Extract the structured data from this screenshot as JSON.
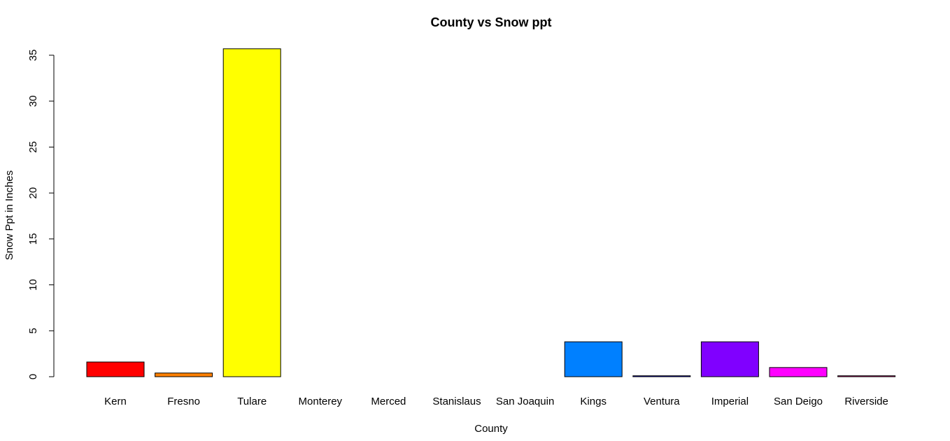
{
  "chart_data": {
    "type": "bar",
    "title": "County vs Snow ppt",
    "xlabel": "County",
    "ylabel": "Snow Ppt in Inches",
    "ylim": [
      0,
      35
    ],
    "yticks": [
      0,
      5,
      10,
      15,
      20,
      25,
      30,
      35
    ],
    "grid": false,
    "categories": [
      "Kern",
      "Fresno",
      "Tulare",
      "Monterey",
      "Merced",
      "Stanislaus",
      "San Joaquin",
      "Kings",
      "Ventura",
      "Imperial",
      "San Deigo",
      "Riverside"
    ],
    "values": [
      1.6,
      0.4,
      35.7,
      0.0,
      0.0,
      0.0,
      0.0,
      3.8,
      0.1,
      3.8,
      1.0,
      0.1
    ],
    "colors": [
      "#FF0000",
      "#FF8000",
      "#FFFF00",
      "#80FF00",
      "#00FF00",
      "#00FF80",
      "#00FFFF",
      "#0080FF",
      "#0000FF",
      "#8000FF",
      "#FF00FF",
      "#FF0080"
    ]
  }
}
